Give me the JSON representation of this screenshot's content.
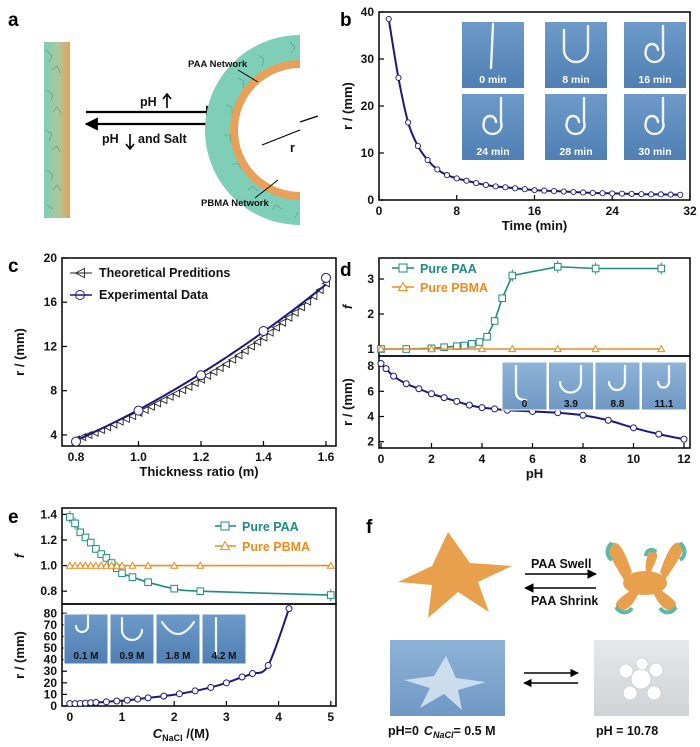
{
  "panels": {
    "a": {
      "letter": "a",
      "labels": {
        "paa_network": "PAA Network",
        "pbma_network": "PBMA Network",
        "ph_up": "pH",
        "ph_down_salt_1": "pH",
        "ph_down_salt_2": "and Salt",
        "radius": "r"
      },
      "colors": {
        "teal": "#7fcfb8",
        "orange": "#e8a05a"
      }
    },
    "b": {
      "letter": "b",
      "photo_labels": [
        "0 min",
        "8 min",
        "16 min",
        "24 min",
        "28 min",
        "30 min"
      ]
    },
    "c": {
      "letter": "c"
    },
    "d": {
      "letter": "d",
      "photo_labels": [
        "0",
        "3.9",
        "8.8",
        "11.1"
      ]
    },
    "e": {
      "letter": "e",
      "photo_labels": [
        "0.1 M",
        "0.9 M",
        "1.8 M",
        "4.2 M"
      ]
    },
    "f": {
      "letter": "f",
      "labels": {
        "swell": "PAA Swell",
        "shrink": "PAA Shrink",
        "left_caption_1": "pH=0",
        "left_caption_c": "C",
        "left_caption_sub": "NaCl",
        "left_caption_2": "= 0.5 M",
        "right_caption": "pH = 10.78"
      },
      "colors": {
        "star": "#e8a04d",
        "teal": "#5fb8a6"
      }
    }
  },
  "chart_data": [
    {
      "id": "b",
      "type": "line",
      "xlabel": "Time (min)",
      "ylabel": "r / (mm)",
      "xlim": [
        0,
        32
      ],
      "ylim": [
        0,
        40
      ],
      "xticks": [
        0,
        8,
        16,
        24,
        32
      ],
      "yticks": [
        0,
        10,
        20,
        30,
        40
      ],
      "color": "#1a1a7a",
      "series": [
        {
          "x": [
            1,
            2,
            3,
            4,
            5,
            6,
            7,
            8,
            9,
            10,
            11,
            12,
            13,
            14,
            15,
            16,
            17,
            18,
            19,
            20,
            21,
            22,
            23,
            24,
            25,
            26,
            27,
            28,
            29,
            30,
            31
          ],
          "y": [
            38.5,
            26,
            16.5,
            11.5,
            8.5,
            6.5,
            5.3,
            4.6,
            4.1,
            3.6,
            3.2,
            2.9,
            2.7,
            2.5,
            2.3,
            2.1,
            2.0,
            1.9,
            1.8,
            1.7,
            1.6,
            1.5,
            1.45,
            1.4,
            1.35,
            1.3,
            1.25,
            1.2,
            1.2,
            1.15,
            1.1
          ]
        }
      ]
    },
    {
      "id": "c",
      "type": "line",
      "xlabel": "Thickness ratio (m)",
      "ylabel": "r / (mm)",
      "xlim": [
        0.8,
        1.6
      ],
      "ylim": [
        3,
        20
      ],
      "xticks": [
        0.8,
        1.0,
        1.2,
        1.4,
        1.6
      ],
      "yticks": [
        4,
        8,
        12,
        16,
        20
      ],
      "series": [
        {
          "name": "Theoretical Preditions",
          "color": "#222222",
          "marker": "left-triangle",
          "x": [
            0.8,
            0.82,
            0.84,
            0.86,
            0.88,
            0.9,
            0.92,
            0.94,
            0.96,
            0.98,
            1.0,
            1.02,
            1.04,
            1.06,
            1.08,
            1.1,
            1.12,
            1.14,
            1.16,
            1.18,
            1.2,
            1.22,
            1.24,
            1.26,
            1.28,
            1.3,
            1.32,
            1.34,
            1.36,
            1.38,
            1.4,
            1.42,
            1.44,
            1.46,
            1.48,
            1.5,
            1.52,
            1.54,
            1.56,
            1.58,
            1.6
          ],
          "y": [
            3.6,
            3.8,
            4.0,
            4.2,
            4.45,
            4.7,
            4.95,
            5.2,
            5.45,
            5.7,
            6.0,
            6.25,
            6.55,
            6.85,
            7.15,
            7.45,
            7.75,
            8.05,
            8.35,
            8.7,
            9.0,
            9.35,
            9.7,
            10.05,
            10.4,
            10.8,
            11.2,
            11.6,
            12.0,
            12.4,
            12.8,
            13.25,
            13.7,
            14.15,
            14.6,
            15.05,
            15.55,
            16.05,
            16.55,
            17.1,
            17.7
          ]
        },
        {
          "name": "Experimental Data",
          "color": "#1a1a7a",
          "marker": "circle",
          "x": [
            0.8,
            1.0,
            1.2,
            1.4,
            1.6
          ],
          "y": [
            3.4,
            6.2,
            9.4,
            13.4,
            18.2
          ]
        }
      ],
      "legend": "top-left"
    },
    {
      "id": "d_top",
      "type": "line",
      "ylabel": "f",
      "xlim": [
        0,
        12
      ],
      "ylim": [
        0.8,
        3.6
      ],
      "yticks": [
        1,
        2,
        3
      ],
      "series": [
        {
          "name": "Pure PAA",
          "color": "#1f8a80",
          "marker": "square",
          "x": [
            0,
            1,
            2,
            2.5,
            3,
            3.3,
            3.6,
            3.9,
            4.2,
            4.5,
            4.8,
            5.2,
            7,
            8.5,
            11.1
          ],
          "y": [
            1.0,
            1.0,
            1.02,
            1.05,
            1.08,
            1.1,
            1.15,
            1.2,
            1.35,
            1.8,
            2.45,
            3.1,
            3.35,
            3.3,
            3.3
          ]
        },
        {
          "name": "Pure PBMA",
          "color": "#f08a1c",
          "marker": "triangle",
          "x": [
            0,
            2,
            4,
            5.2,
            7,
            8.5,
            11.1
          ],
          "y": [
            1.0,
            1.0,
            1.0,
            1.0,
            1.0,
            1.0,
            1.0
          ]
        }
      ],
      "legend": "top-left"
    },
    {
      "id": "d_bottom",
      "type": "line",
      "xlabel": "pH",
      "ylabel": "r / (mm)",
      "xlim": [
        0,
        12
      ],
      "ylim": [
        1.5,
        8.8
      ],
      "xticks": [
        0,
        2,
        4,
        6,
        8,
        10,
        12
      ],
      "yticks": [
        2,
        4,
        6,
        8
      ],
      "series": [
        {
          "color": "#1a1a7a",
          "x": [
            0,
            0.2,
            0.5,
            1,
            1.5,
            2,
            2.5,
            3,
            3.5,
            4,
            4.5,
            5,
            6,
            7,
            8,
            9,
            10,
            11,
            12
          ],
          "y": [
            8.2,
            7.8,
            7.2,
            6.6,
            6.2,
            5.8,
            5.5,
            5.2,
            4.9,
            4.7,
            4.6,
            4.5,
            4.4,
            4.3,
            4.1,
            3.7,
            3.1,
            2.6,
            2.2
          ]
        }
      ]
    },
    {
      "id": "e_top",
      "type": "line",
      "ylabel": "f",
      "xlim": [
        -0.15,
        5.1
      ],
      "ylim": [
        0.7,
        1.45
      ],
      "yticks": [
        0.8,
        1.0,
        1.2,
        1.4
      ],
      "series": [
        {
          "name": "Pure PAA",
          "color": "#1f8a80",
          "marker": "square",
          "x": [
            0,
            0.1,
            0.2,
            0.3,
            0.4,
            0.5,
            0.6,
            0.7,
            0.8,
            0.9,
            1.0,
            1.2,
            1.5,
            2.0,
            2.5,
            5.0
          ],
          "y": [
            1.38,
            1.33,
            1.26,
            1.22,
            1.18,
            1.13,
            1.09,
            1.06,
            1.02,
            0.98,
            0.94,
            0.91,
            0.87,
            0.82,
            0.8,
            0.77
          ]
        },
        {
          "name": "Pure PBMA",
          "color": "#f08a1c",
          "marker": "triangle",
          "x": [
            0,
            0.1,
            0.2,
            0.3,
            0.4,
            0.5,
            0.6,
            0.7,
            0.8,
            0.9,
            1.0,
            1.2,
            1.5,
            2.0,
            2.5,
            5.0
          ],
          "y": [
            1.0,
            1.0,
            1.0,
            1.0,
            1.0,
            1.0,
            1.0,
            1.0,
            1.0,
            1.0,
            1.0,
            1.0,
            1.0,
            1.0,
            1.0,
            1.0
          ]
        }
      ],
      "legend": "top-right"
    },
    {
      "id": "e_bottom",
      "type": "line",
      "xlabel": "C_NaCl /(M)",
      "ylabel": "r / (mm)",
      "xlim": [
        -0.15,
        5.1
      ],
      "ylim": [
        0,
        88
      ],
      "xticks": [
        0,
        1,
        2,
        3,
        4,
        5
      ],
      "yticks": [
        0,
        10,
        20,
        30,
        40,
        50,
        60,
        70,
        80
      ],
      "series": [
        {
          "color": "#1a1a7a",
          "x": [
            0,
            0.1,
            0.2,
            0.3,
            0.4,
            0.5,
            0.7,
            0.9,
            1.1,
            1.3,
            1.5,
            1.8,
            2.1,
            2.4,
            2.7,
            3.0,
            3.3,
            3.5,
            3.8,
            4.2
          ],
          "y": [
            2,
            2,
            2.2,
            2.5,
            2.8,
            3,
            3.6,
            4.3,
            5,
            6,
            7,
            8.5,
            10.5,
            13,
            16,
            20,
            25,
            28,
            35,
            84
          ]
        }
      ]
    }
  ]
}
